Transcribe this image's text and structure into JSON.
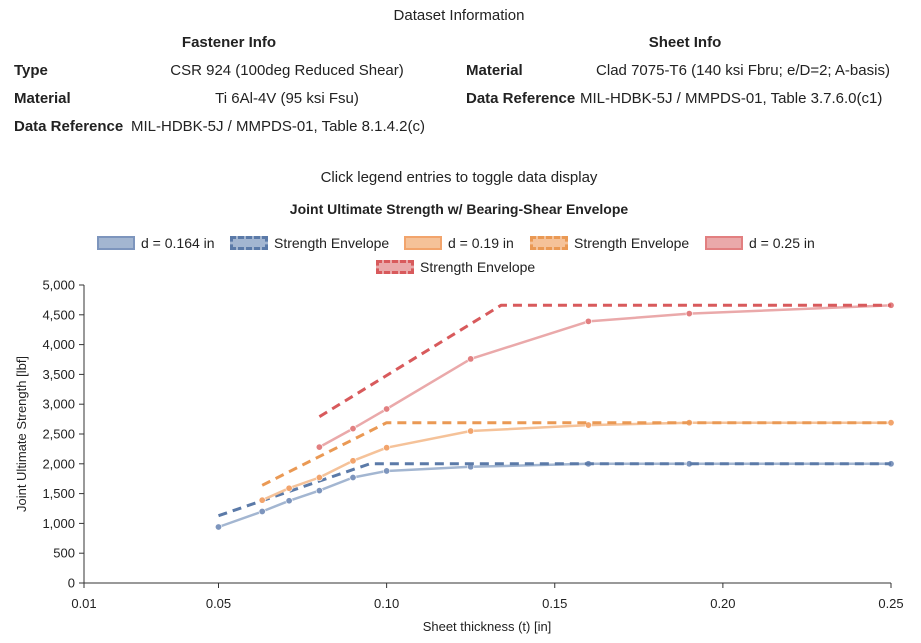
{
  "dataset": {
    "header": "Dataset Information",
    "fastener": {
      "heading": "Fastener Info",
      "type_label": "Type",
      "type_value": "CSR 924 (100deg Reduced Shear)",
      "material_label": "Material",
      "material_value": "Ti 6Al-4V (95 ksi Fsu)",
      "ref_label": "Data Reference",
      "ref_value": "MIL-HDBK-5J / MMPDS-01, Table 8.1.4.2(c)"
    },
    "sheet": {
      "heading": "Sheet Info",
      "material_label": "Material",
      "material_value": "Clad 7075-T6 (140 ksi Fbru; e/D=2; A-basis)",
      "ref_label": "Data Reference",
      "ref_value": "MIL-HDBK-5J / MMPDS-01, Table 3.7.6.0(c1)"
    }
  },
  "instruction": "Click legend entries to toggle data display",
  "chart_data": {
    "type": "line",
    "title": "Joint Ultimate Strength w/ Bearing-Shear Envelope",
    "xlabel": "Sheet thickness (t) [in]",
    "ylabel": "Joint Ultimate Strength [lbf]",
    "xlim": [
      0.01,
      0.25
    ],
    "ylim": [
      0,
      5000
    ],
    "xticks": [
      0.01,
      0.05,
      0.1,
      0.15,
      0.2,
      0.25
    ],
    "xtick_labels": [
      "0.01",
      "0.05",
      "0.10",
      "0.15",
      "0.20",
      "0.25"
    ],
    "yticks": [
      0,
      500,
      1000,
      1500,
      2000,
      2500,
      3000,
      3500,
      4000,
      4500,
      5000
    ],
    "ytick_labels": [
      "0",
      "500",
      "1,000",
      "1,500",
      "2,000",
      "2,500",
      "3,000",
      "3,500",
      "4,000",
      "4,500",
      "5,000"
    ],
    "grid": false,
    "legend_position": "top",
    "series": [
      {
        "name": "d = 0.164 in",
        "style": "solid",
        "color": "#a3b6d1",
        "marker_color": "#7d95bd",
        "x": [
          0.05,
          0.063,
          0.071,
          0.08,
          0.09,
          0.1,
          0.125,
          0.16,
          0.19,
          0.25
        ],
        "y": [
          940,
          1200,
          1380,
          1550,
          1770,
          1880,
          1950,
          2000,
          2000,
          2000
        ]
      },
      {
        "name": "Strength Envelope",
        "style": "dashed",
        "color": "#5b7aa8",
        "x": [
          0.05,
          0.095,
          0.25
        ],
        "y": [
          1130,
          2000,
          2000
        ]
      },
      {
        "name": "d = 0.19 in",
        "style": "solid",
        "color": "#f5c299",
        "marker_color": "#f2a46c",
        "x": [
          0.063,
          0.071,
          0.08,
          0.09,
          0.1,
          0.125,
          0.16,
          0.19,
          0.25
        ],
        "y": [
          1390,
          1590,
          1770,
          2050,
          2270,
          2550,
          2650,
          2690,
          2690
        ]
      },
      {
        "name": "Strength Envelope",
        "style": "dashed",
        "color": "#ea9954",
        "x": [
          0.063,
          0.1,
          0.25
        ],
        "y": [
          1640,
          2690,
          2690
        ]
      },
      {
        "name": "d = 0.25 in",
        "style": "solid",
        "color": "#eaa9aa",
        "marker_color": "#e27f80",
        "x": [
          0.08,
          0.09,
          0.1,
          0.125,
          0.16,
          0.19,
          0.25
        ],
        "y": [
          2280,
          2590,
          2920,
          3760,
          4390,
          4520,
          4660
        ]
      },
      {
        "name": "Strength Envelope",
        "style": "dashed",
        "color": "#d85a5c",
        "x": [
          0.08,
          0.134,
          0.25
        ],
        "y": [
          2790,
          4660,
          4660
        ]
      }
    ]
  }
}
